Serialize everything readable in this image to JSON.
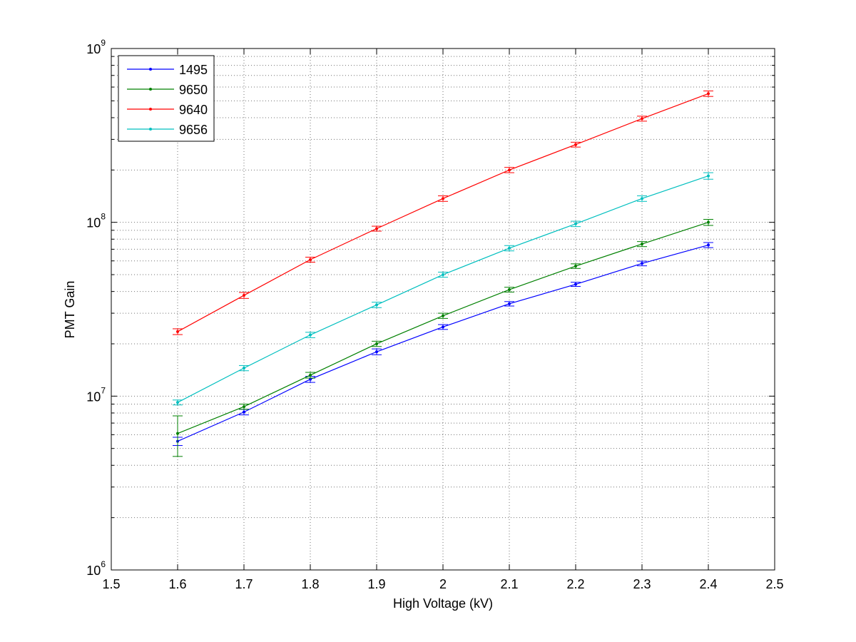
{
  "chart_data": {
    "type": "line",
    "title": "",
    "xlabel": "High Voltage (kV)",
    "ylabel": "PMT Gain",
    "xlim": [
      1.5,
      2.5
    ],
    "ylim": [
      1000000,
      1000000000
    ],
    "yscale": "log",
    "grid": true,
    "legend_position": "top-left",
    "x_ticks": [
      "1.5",
      "1.6",
      "1.7",
      "1.8",
      "1.9",
      "2",
      "2.1",
      "2.2",
      "2.3",
      "2.4",
      "2.5"
    ],
    "y_ticks": [
      {
        "base": "10",
        "exp": "6"
      },
      {
        "base": "10",
        "exp": "7"
      },
      {
        "base": "10",
        "exp": "8"
      },
      {
        "base": "10",
        "exp": "9"
      }
    ],
    "x": [
      1.6,
      1.7,
      1.8,
      1.9,
      2.0,
      2.1,
      2.2,
      2.3,
      2.4
    ],
    "series": [
      {
        "name": "1495",
        "color": "#0000ff",
        "values": [
          5500000,
          8100000,
          12500000,
          18000000,
          25000000,
          34000000,
          44000000,
          58000000,
          74000000
        ],
        "errors": [
          300000,
          300000,
          500000,
          700000,
          800000,
          1000000,
          1200000,
          1800000,
          2500000
        ]
      },
      {
        "name": "9650",
        "color": "#008000",
        "values": [
          6100000,
          8700000,
          13200000,
          20000000,
          29000000,
          41000000,
          56000000,
          75000000,
          100000000
        ],
        "errors": [
          1600000,
          300000,
          500000,
          700000,
          1000000,
          1300000,
          1700000,
          2500000,
          4000000
        ]
      },
      {
        "name": "9640",
        "color": "#ff0000",
        "values": [
          23500000,
          38000000,
          61000000,
          92000000,
          137000000,
          200000000,
          280000000,
          395000000,
          550000000
        ],
        "errors": [
          900000,
          1500000,
          2000000,
          3000000,
          5000000,
          7000000,
          9000000,
          13000000,
          20000000
        ]
      },
      {
        "name": "9656",
        "color": "#00bfbf",
        "values": [
          9200000,
          14500000,
          22500000,
          33500000,
          50000000,
          71000000,
          98000000,
          137000000,
          185000000
        ],
        "errors": [
          300000,
          500000,
          800000,
          1200000,
          1700000,
          2500000,
          3500000,
          5000000,
          8000000
        ]
      }
    ]
  }
}
